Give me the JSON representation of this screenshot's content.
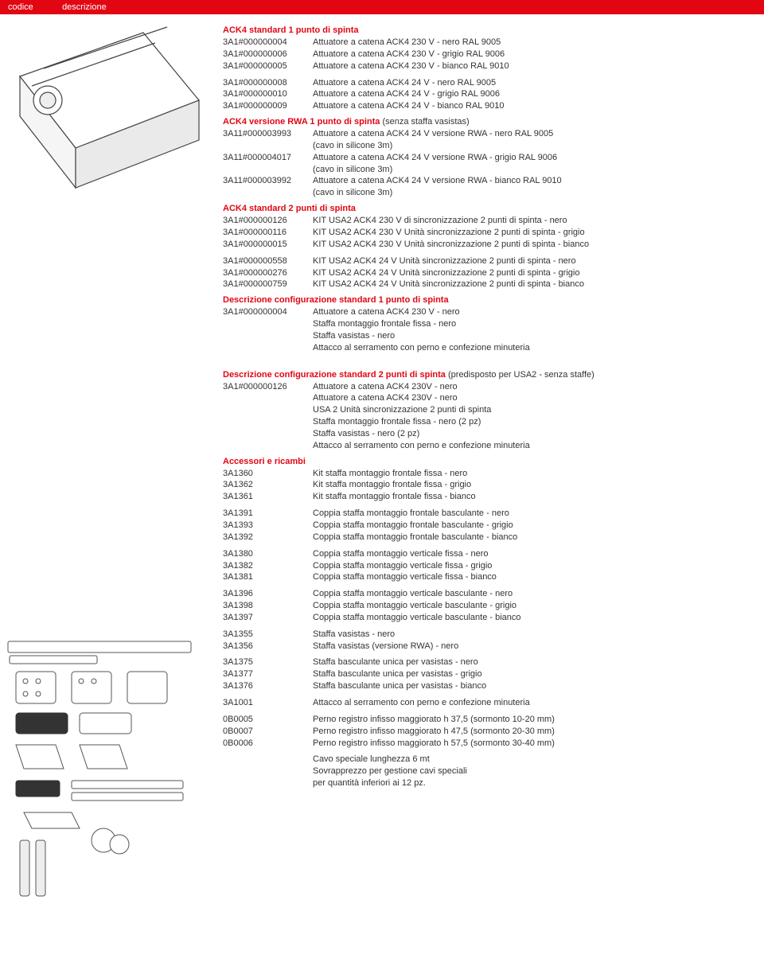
{
  "header": {
    "col1": "codice",
    "col2": "descrizione"
  },
  "sections": [
    {
      "title": "ACK4 standard 1 punto di spinta",
      "groups": [
        [
          {
            "code": "3A1#000000004",
            "desc": "Attuatore a catena ACK4 230 V - nero RAL 9005"
          },
          {
            "code": "3A1#000000006",
            "desc": "Attuatore a catena ACK4 230 V - grigio RAL 9006"
          },
          {
            "code": "3A1#000000005",
            "desc": "Attuatore a catena ACK4 230 V - bianco RAL 9010"
          }
        ],
        [
          {
            "code": "3A1#000000008",
            "desc": "Attuatore a catena ACK4 24 V - nero RAL 9005"
          },
          {
            "code": "3A1#000000010",
            "desc": "Attuatore a catena ACK4 24 V - grigio RAL 9006"
          },
          {
            "code": "3A1#000000009",
            "desc": "Attuatore a catena ACK4 24 V - bianco RAL 9010"
          }
        ]
      ]
    },
    {
      "title": "ACK4 versione RWA 1 punto di spinta",
      "suffix": " (senza staffa vasistas)",
      "groups": [
        [
          {
            "code": "3A11#000003993",
            "desc": "Attuatore a catena ACK4 24 V versione RWA - nero RAL 9005",
            "extra": "(cavo in silicone 3m)"
          },
          {
            "code": "3A11#000004017",
            "desc": "Attuatore a catena ACK4 24 V versione RWA - grigio RAL 9006",
            "extra": "(cavo in silicone 3m)"
          },
          {
            "code": "3A11#000003992",
            "desc": "Attuatore a catena ACK4 24 V versione RWA - bianco RAL 9010",
            "extra": "(cavo in silicone 3m)"
          }
        ]
      ]
    },
    {
      "title": "ACK4 standard 2 punti di spinta",
      "groups": [
        [
          {
            "code": "3A1#000000126",
            "desc": "KIT USA2 ACK4 230 V di sincronizzazione 2 punti di spinta - nero"
          },
          {
            "code": "3A1#000000116",
            "desc": "KIT USA2 ACK4 230 V Unità sincronizzazione 2 punti di spinta - grigio"
          },
          {
            "code": "3A1#000000015",
            "desc": "KIT USA2 ACK4 230 V Unità sincronizzazione 2 punti di spinta - bianco"
          }
        ],
        [
          {
            "code": "3A1#000000558",
            "desc": "KIT USA2 ACK4 24 V Unità sincronizzazione 2 punti di spinta - nero"
          },
          {
            "code": "3A1#000000276",
            "desc": "KIT USA2 ACK4 24 V Unità sincronizzazione 2 punti di spinta - grigio"
          },
          {
            "code": "3A1#000000759",
            "desc": "KIT USA2 ACK4 24 V Unità sincronizzazione 2 punti di spinta - bianco"
          }
        ]
      ]
    },
    {
      "title": "Descrizione configurazione standard 1 punto di spinta",
      "config": {
        "code": "3A1#000000004",
        "lines": [
          "Attuatore a catena ACK4 230 V - nero",
          "Staffa montaggio frontale fissa - nero",
          "Staffa vasistas - nero",
          "Attacco al serramento con perno e confezione minuteria"
        ]
      }
    },
    {
      "title": "Descrizione configurazione standard 2 punti di spinta",
      "suffix": " (predisposto per USA2 - senza staffe)",
      "config": {
        "code": "3A1#000000126",
        "lines": [
          "Attuatore a catena ACK4 230V - nero",
          "Attuatore a catena ACK4 230V - nero",
          "USA 2 Unità sincronizzazione 2 punti di spinta",
          "Staffa montaggio frontale fissa - nero (2 pz)",
          "Staffa vasistas - nero (2 pz)",
          "Attacco al serramento con perno e confezione minuteria"
        ]
      }
    },
    {
      "title": "Accessori e ricambi",
      "groups": [
        [
          {
            "code": "3A1360",
            "desc": "Kit staffa montaggio frontale fissa - nero"
          },
          {
            "code": "3A1362",
            "desc": "Kit staffa montaggio frontale fissa - grigio"
          },
          {
            "code": "3A1361",
            "desc": "Kit staffa montaggio frontale fissa - bianco"
          }
        ],
        [
          {
            "code": "3A1391",
            "desc": "Coppia staffa montaggio frontale basculante - nero"
          },
          {
            "code": "3A1393",
            "desc": "Coppia staffa montaggio frontale basculante - grigio"
          },
          {
            "code": "3A1392",
            "desc": "Coppia staffa montaggio frontale basculante - bianco"
          }
        ],
        [
          {
            "code": "3A1380",
            "desc": "Coppia staffa montaggio verticale fissa - nero"
          },
          {
            "code": "3A1382",
            "desc": "Coppia staffa montaggio verticale fissa - grigio"
          },
          {
            "code": "3A1381",
            "desc": "Coppia staffa montaggio verticale fissa - bianco"
          }
        ],
        [
          {
            "code": "3A1396",
            "desc": "Coppia staffa montaggio verticale basculante - nero"
          },
          {
            "code": "3A1398",
            "desc": "Coppia staffa montaggio verticale basculante - grigio"
          },
          {
            "code": "3A1397",
            "desc": "Coppia staffa montaggio verticale basculante - bianco"
          }
        ],
        [
          {
            "code": "3A1355",
            "desc": "Staffa vasistas - nero"
          },
          {
            "code": "3A1356",
            "desc": "Staffa vasistas (versione RWA) - nero"
          }
        ],
        [
          {
            "code": "3A1375",
            "desc": "Staffa basculante unica per vasistas - nero"
          },
          {
            "code": "3A1377",
            "desc": "Staffa basculante unica per vasistas - grigio"
          },
          {
            "code": "3A1376",
            "desc": "Staffa basculante unica per vasistas - bianco"
          }
        ],
        [
          {
            "code": "3A1001",
            "desc": "Attacco al serramento con perno e confezione minuteria"
          }
        ],
        [
          {
            "code": "0B0005",
            "desc": "Perno registro infisso maggiorato h 37,5 (sormonto 10-20 mm)"
          },
          {
            "code": "0B0007",
            "desc": "Perno registro infisso maggiorato h 47,5 (sormonto 20-30 mm)"
          },
          {
            "code": "0B0006",
            "desc": "Perno registro infisso maggiorato h 57,5 (sormonto 30-40 mm)"
          }
        ]
      ]
    }
  ],
  "footer": [
    "Cavo speciale lunghezza 6 mt",
    "Sovrapprezzo per gestione cavi speciali",
    "per quantità inferiori ai 12 pz."
  ]
}
